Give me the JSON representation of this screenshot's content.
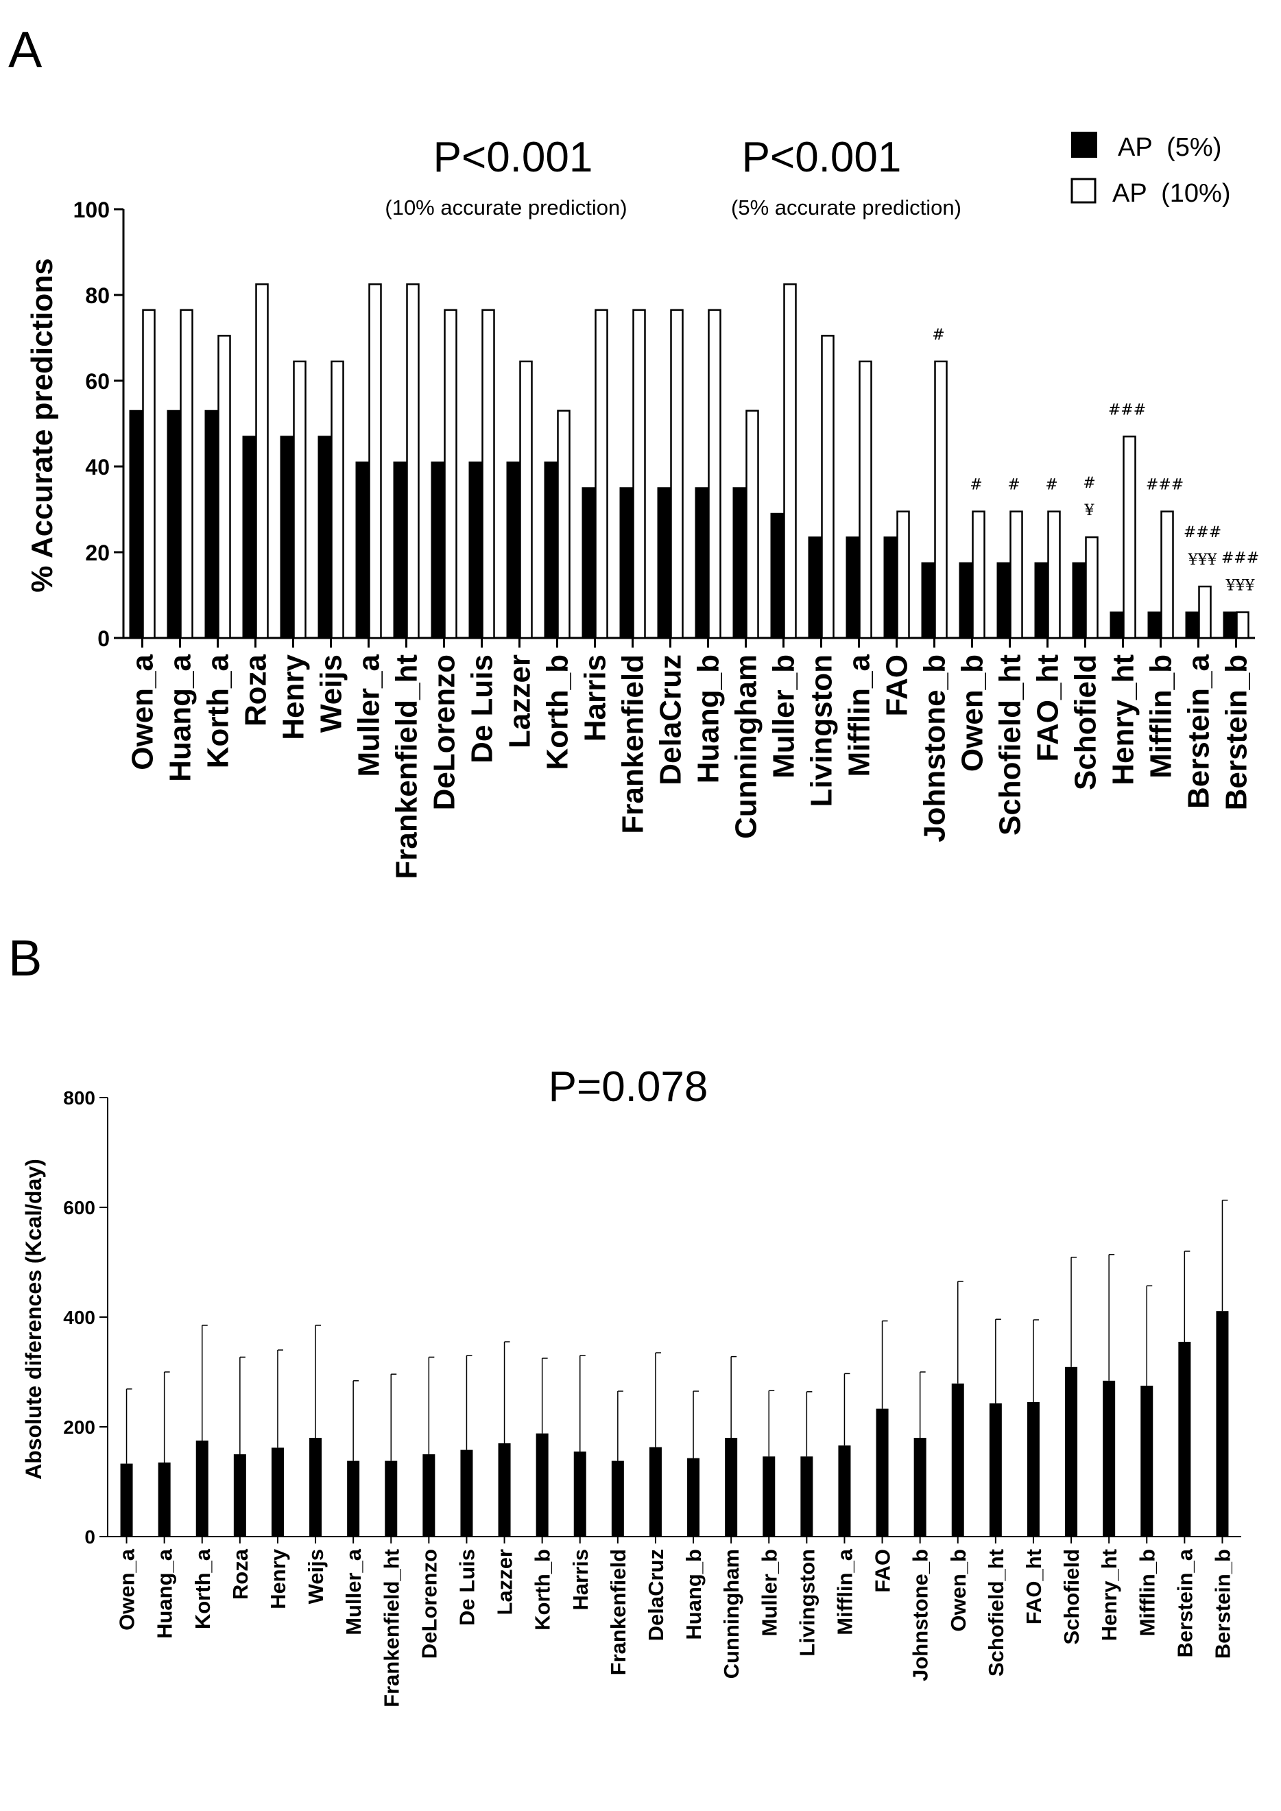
{
  "chart_data": [
    {
      "type": "bar",
      "panel_label": "A",
      "ylabel": "% Accurate predictions",
      "ylim": [
        0,
        100
      ],
      "yticks": [
        "0",
        "20",
        "40",
        "60",
        "80",
        "100"
      ],
      "annotations": [
        {
          "text": "P<0.001",
          "sub": "(10% accurate prediction)"
        },
        {
          "text": "P<0.001",
          "sub": "(5% accurate prediction)"
        }
      ],
      "legend_position": "top-right",
      "categories": [
        "Owen_a",
        "Huang_a",
        "Korth_a",
        "Roza",
        "Henry",
        "Weijs",
        "Muller_a",
        "Frankenfield_ht",
        "DeLorenzo",
        "De Luis",
        "Lazzer",
        "Korth_b",
        "Harris",
        "Frankenfield",
        "DelaCruz",
        "Huang_b",
        "Cunningham",
        "Muller_b",
        "Livingston",
        "Mifflin_a",
        "FAO",
        "Johnstone_b",
        "Owen_b",
        "Schofield_ht",
        "FAO_ht",
        "Schofield",
        "Henry_ht",
        "Mifflin_b",
        "Berstein_a",
        "Berstein_b"
      ],
      "series": [
        {
          "name": "AP  (5%)",
          "fill": "#000000",
          "values": [
            53,
            53,
            53,
            47,
            47,
            47,
            41,
            41,
            41,
            41,
            41,
            41,
            35,
            35,
            35,
            35,
            35,
            29,
            23.5,
            23.5,
            23.5,
            17.5,
            17.5,
            17.5,
            17.5,
            17.5,
            6,
            6,
            6,
            6
          ]
        },
        {
          "name": "AP  (10%)",
          "fill": "#ffffff",
          "values": [
            76.5,
            76.5,
            70.5,
            82.5,
            64.5,
            64.5,
            82.5,
            82.5,
            76.5,
            76.5,
            64.5,
            53,
            76.5,
            76.5,
            76.5,
            76.5,
            53,
            82.5,
            70.5,
            64.5,
            29.5,
            64.5,
            29.5,
            29.5,
            29.5,
            23.5,
            47,
            29.5,
            12,
            6
          ]
        }
      ],
      "significance_marks": [
        {
          "category": "Johnstone_b",
          "lines": [
            "#"
          ]
        },
        {
          "category": "Owen_b",
          "lines": [
            "#"
          ]
        },
        {
          "category": "Schofield_ht",
          "lines": [
            "#"
          ]
        },
        {
          "category": "FAO_ht",
          "lines": [
            "#"
          ]
        },
        {
          "category": "Schofield",
          "lines": [
            "#",
            "¥"
          ]
        },
        {
          "category": "Henry_ht",
          "lines": [
            "###"
          ]
        },
        {
          "category": "Mifflin_b",
          "lines": [
            "###"
          ]
        },
        {
          "category": "Berstein_a",
          "lines": [
            "###",
            "¥¥¥"
          ]
        },
        {
          "category": "Berstein_b",
          "lines": [
            "###",
            "¥¥¥"
          ]
        }
      ]
    },
    {
      "type": "bar",
      "panel_label": "B",
      "ylabel": "Absolute diferences (Kcal/day)",
      "ylim": [
        0,
        800
      ],
      "yticks": [
        "0",
        "200",
        "400",
        "600",
        "800"
      ],
      "annotations": [
        {
          "text": "P=0.078"
        }
      ],
      "categories": [
        "Owen_a",
        "Huang_a",
        "Korth_a",
        "Roza",
        "Henry",
        "Weijs",
        "Muller_a",
        "Frankenfield_ht",
        "DeLorenzo",
        "De Luis",
        "Lazzer",
        "Korth_b",
        "Harris",
        "Frankenfield",
        "DelaCruz",
        "Huang_b",
        "Cunningham",
        "Muller_b",
        "Livingston",
        "Mifflin_a",
        "FAO",
        "Johnstone_b",
        "Owen_b",
        "Schofield_ht",
        "FAO_ht",
        "Schofield",
        "Henry_ht",
        "Mifflin_b",
        "Berstein_a",
        "Berstein_b"
      ],
      "series": [
        {
          "fill": "#000000",
          "values": [
            133,
            135,
            175,
            150,
            162,
            180,
            138,
            138,
            150,
            158,
            170,
            188,
            155,
            138,
            163,
            143,
            180,
            146,
            146,
            166,
            233,
            180,
            279,
            243,
            245,
            309,
            284,
            275,
            355,
            411
          ],
          "error": [
            136,
            165,
            210,
            177,
            178,
            205,
            146,
            158,
            177,
            172,
            185,
            137,
            175,
            127,
            172,
            122,
            148,
            120,
            118,
            131,
            160,
            120,
            186,
            153,
            150,
            200,
            230,
            182,
            165,
            202
          ]
        }
      ]
    }
  ]
}
